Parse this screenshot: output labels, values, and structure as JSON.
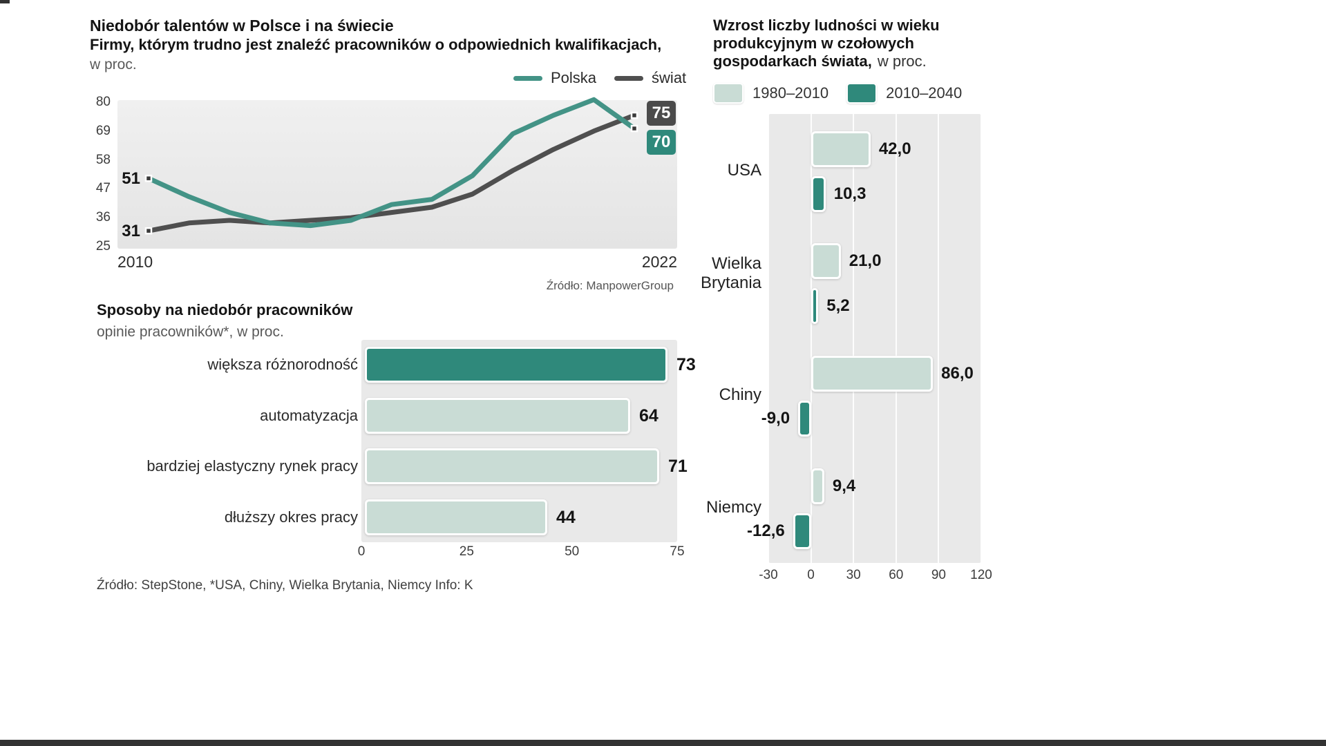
{
  "page": {
    "background": "#ffffff",
    "accent_teal": "#2f897b",
    "accent_teal_light": "#c9dcd5",
    "accent_dark": "#4b4b4b",
    "chart_background": "#e9e9e9"
  },
  "chart_data": [
    {
      "type": "line",
      "title": "Niedobór talentów w Polsce i na świecie",
      "subtitle": "Firmy, którym trudno jest znaleźć pracowników o odpowiednich kwalifikacjach,",
      "unit": "w proc.",
      "x": [
        2010,
        2011,
        2012,
        2013,
        2014,
        2015,
        2016,
        2017,
        2018,
        2019,
        2020,
        2021,
        2022
      ],
      "series": [
        {
          "name": "Polska",
          "color": "#439386",
          "values": [
            51,
            44,
            38,
            34,
            33,
            35,
            41,
            43,
            52,
            68,
            75,
            81,
            70
          ]
        },
        {
          "name": "świat",
          "color": "#4f4f4f",
          "values": [
            31,
            34,
            35,
            34,
            35,
            36,
            38,
            40,
            45,
            54,
            62,
            69,
            75
          ]
        }
      ],
      "ylim": [
        25,
        80
      ],
      "yticks": [
        80,
        69,
        58,
        47,
        36,
        25
      ],
      "xtick_labels": [
        "2010",
        "2022"
      ],
      "start_labels": [
        "51",
        "31"
      ],
      "end_labels": [
        {
          "value": "75",
          "series": "świat",
          "color": "#4b4b4b"
        },
        {
          "value": "70",
          "series": "Polska",
          "color": "#2f897b"
        }
      ],
      "legend_position": "top-right",
      "grid": false,
      "source": "Źródło: ManpowerGroup"
    },
    {
      "type": "bar",
      "orientation": "horizontal",
      "title": "Sposoby na niedobór pracowników",
      "subtitle": "opinie pracowników*, w proc.",
      "categories": [
        "większa różnorodność",
        "automatyzacja",
        "bardziej elastyczny rynek pracy",
        "dłuższy okres pracy"
      ],
      "values": [
        73,
        64,
        71,
        44
      ],
      "bar_colors": [
        "#2f897b",
        "#c9dcd5",
        "#c9dcd5",
        "#c9dcd5"
      ],
      "xticks": [
        0,
        25,
        50,
        75
      ],
      "xlim": [
        0,
        75
      ],
      "grid": false,
      "source": "Źródło: StepStone, *USA, Chiny, Wielka Brytania, Niemcy  Info: K"
    },
    {
      "type": "bar",
      "orientation": "horizontal",
      "grouped": true,
      "title": "Wzrost liczby ludności w wieku produkcyjnym w czołowych gospodarkach świata, w proc.",
      "title_lines": [
        "Wzrost liczby ludności w wieku",
        "produkcyjnym w czołowych",
        "gospodarkach świata,"
      ],
      "unit": "w proc.",
      "categories": [
        "USA",
        "Wielka Brytania",
        "Chiny",
        "Niemcy"
      ],
      "series": [
        {
          "name": "1980–2010",
          "color": "#c9dcd5",
          "values": [
            42.0,
            21.0,
            86.0,
            9.4
          ]
        },
        {
          "name": "2010–2040",
          "color": "#2f897b",
          "values": [
            10.3,
            5.2,
            -9.0,
            -12.6
          ]
        }
      ],
      "value_labels": [
        [
          "42,0",
          "10,3"
        ],
        [
          "21,0",
          "5,2"
        ],
        [
          "86,0",
          "-9,0"
        ],
        [
          "9,4",
          "-12,6"
        ]
      ],
      "xticks": [
        -30,
        0,
        30,
        60,
        90,
        120
      ],
      "xlim": [
        -30,
        120
      ],
      "grid": true,
      "legend_position": "top"
    }
  ]
}
